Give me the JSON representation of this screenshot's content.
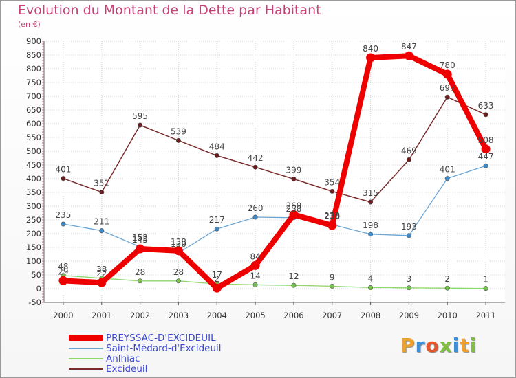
{
  "header": {
    "title": "Evolution du Montant de la Dette par Habitant",
    "subtitle": "(en €)"
  },
  "logo": {
    "text": "Proxiti",
    "letter_colors": [
      "#f0a12a",
      "#3e8fd6",
      "#e4572e",
      "#7fbf3f",
      "#3e8fd6",
      "#f0a12a",
      "#7fbf3f"
    ]
  },
  "chart_data": {
    "type": "line",
    "title": "Evolution du Montant de la Dette par Habitant",
    "subtitle": "(en €)",
    "x": [
      "2000",
      "2001",
      "2002",
      "2003",
      "2004",
      "2005",
      "2006",
      "2007",
      "2008",
      "2009",
      "2010",
      "2011"
    ],
    "ylim": [
      -50,
      900
    ],
    "yticks": [
      -50,
      0,
      50,
      100,
      150,
      200,
      250,
      300,
      350,
      400,
      450,
      500,
      550,
      600,
      650,
      700,
      750,
      800,
      850,
      900
    ],
    "grid": true,
    "legend_position": "bottom-left",
    "series": [
      {
        "name": "PREYSSAC-D'EXCIDEUIL",
        "color": "#ee0000",
        "marker_color": "#ee0000",
        "values": [
          29,
          22,
          145,
          138,
          2,
          84,
          269,
          230,
          840,
          847,
          780,
          508
        ]
      },
      {
        "name": "Saint-Médard-d'Excideuil",
        "color": "#6aa5d4",
        "marker_color": "#3f8ac8",
        "values": [
          235,
          211,
          152,
          130,
          217,
          260,
          258,
          233,
          198,
          193,
          401,
          447
        ]
      },
      {
        "name": "Anlhiac",
        "color": "#8fd66b",
        "marker_color": "#77c24d",
        "values": [
          48,
          38,
          28,
          28,
          17,
          14,
          12,
          9,
          4,
          3,
          2,
          1
        ]
      },
      {
        "name": "Excideuil",
        "color": "#7a2c2c",
        "marker_color": "#6b1d1d",
        "values": [
          401,
          351,
          595,
          539,
          484,
          442,
          399,
          354,
          315,
          469,
          697,
          633
        ]
      }
    ]
  }
}
